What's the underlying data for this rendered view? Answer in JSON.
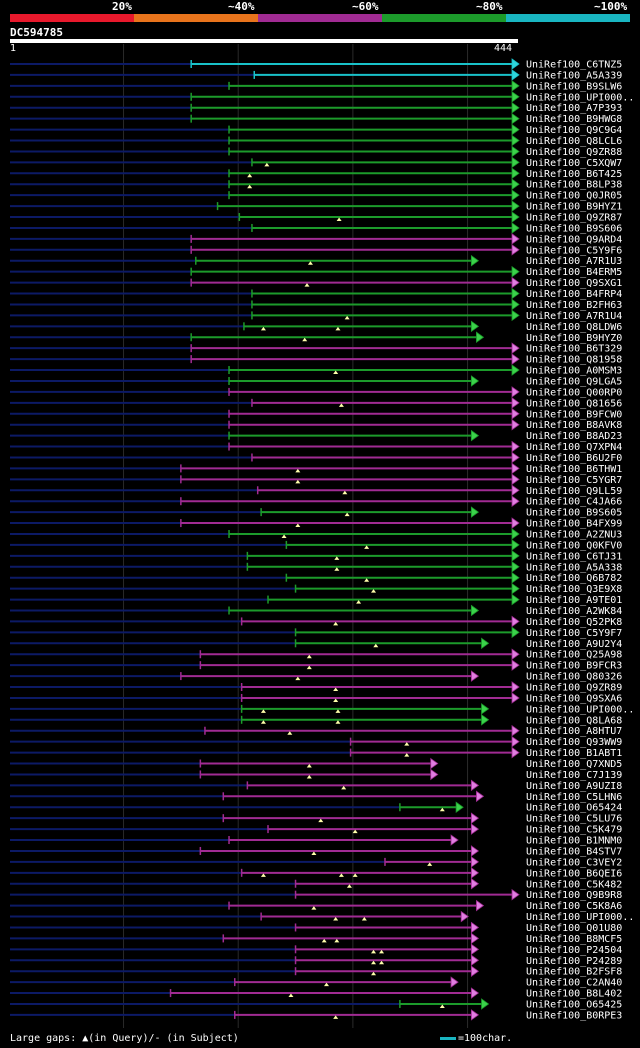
{
  "legend": {
    "labels": [
      "20%",
      "~40%",
      "~60%",
      "~80%",
      "~100%"
    ],
    "colors": [
      "#e8192c",
      "#e8741c",
      "#a12b93",
      "#1c9b2b",
      "#19b5c1"
    ]
  },
  "query": {
    "id": "DC594785",
    "start": "1",
    "end": "444",
    "length": 444
  },
  "footer": {
    "gaps_note": "Large gaps: ▲(in Query)/- (in Subject)",
    "scale_note": "=100char."
  },
  "chart_data": {
    "type": "alignment-overview",
    "title": "DC594785",
    "xlim": [
      1,
      444
    ],
    "hits": [
      {
        "label": "UniRef100_C6TNZ5",
        "start": 159,
        "color": "cyan",
        "gaps": []
      },
      {
        "label": "UniRef100_A5A339",
        "start": 214,
        "color": "cyan",
        "gaps": []
      },
      {
        "label": "UniRef100_B9SLW6",
        "start": 192,
        "color": "green",
        "gaps": []
      },
      {
        "label": "UniRef100_UPI000..",
        "start": 159,
        "color": "green",
        "gaps": []
      },
      {
        "label": "UniRef100_A7P393",
        "start": 159,
        "color": "green",
        "gaps": []
      },
      {
        "label": "UniRef100_B9HWG8",
        "start": 159,
        "color": "green",
        "gaps": []
      },
      {
        "label": "UniRef100_Q9C9G4",
        "start": 192,
        "color": "green",
        "gaps": []
      },
      {
        "label": "UniRef100_Q8LCL6",
        "start": 192,
        "color": "green",
        "gaps": []
      },
      {
        "label": "UniRef100_Q9ZR88",
        "start": 192,
        "color": "green",
        "gaps": []
      },
      {
        "label": "UniRef100_C5XQW7",
        "start": 212,
        "color": "green",
        "gaps": [
          225
        ]
      },
      {
        "label": "UniRef100_B6T425",
        "start": 192,
        "color": "green",
        "gaps": [
          210
        ]
      },
      {
        "label": "UniRef100_B8LP38",
        "start": 192,
        "color": "green",
        "gaps": [
          210
        ]
      },
      {
        "label": "UniRef100_Q0JR05",
        "start": 192,
        "color": "green",
        "gaps": []
      },
      {
        "label": "UniRef100_B9HYZ1",
        "start": 182,
        "color": "green",
        "gaps": []
      },
      {
        "label": "UniRef100_Q9ZR87",
        "start": 201,
        "color": "green",
        "gaps": [
          288
        ]
      },
      {
        "label": "UniRef100_B9S606",
        "start": 212,
        "color": "green",
        "gaps": []
      },
      {
        "label": "UniRef100_Q9ARD4",
        "start": 159,
        "color": "purple",
        "gaps": []
      },
      {
        "label": "UniRef100_C5Y9F6",
        "start": 159,
        "color": "purple",
        "gaps": []
      },
      {
        "label": "UniRef100_A7R1U3",
        "start": 163,
        "color": "green",
        "gaps": [
          263
        ],
        "end_frac": 0.92
      },
      {
        "label": "UniRef100_B4ERM5",
        "start": 159,
        "color": "green",
        "gaps": []
      },
      {
        "label": "UniRef100_Q9SXG1",
        "start": 159,
        "color": "purple",
        "gaps": [
          260
        ]
      },
      {
        "label": "UniRef100_B4FRP4",
        "start": 212,
        "color": "green",
        "gaps": []
      },
      {
        "label": "UniRef100_B2FH63",
        "start": 212,
        "color": "green",
        "gaps": []
      },
      {
        "label": "UniRef100_A7R1U4",
        "start": 212,
        "color": "green",
        "gaps": [
          295
        ]
      },
      {
        "label": "UniRef100_Q8LDW6",
        "start": 205,
        "color": "green",
        "gaps": [
          222,
          287
        ],
        "end_frac": 0.92
      },
      {
        "label": "UniRef100_B9HYZ0",
        "start": 159,
        "color": "green",
        "gaps": [
          258
        ],
        "end_frac": 0.93
      },
      {
        "label": "UniRef100_B6T329",
        "start": 159,
        "color": "purple",
        "gaps": []
      },
      {
        "label": "UniRef100_Q81958",
        "start": 159,
        "color": "purple",
        "gaps": []
      },
      {
        "label": "UniRef100_A0MSM3",
        "start": 192,
        "color": "green",
        "gaps": [
          285
        ]
      },
      {
        "label": "UniRef100_Q9LGA5",
        "start": 192,
        "color": "green",
        "gaps": [],
        "end_frac": 0.92
      },
      {
        "label": "UniRef100_Q00RP0",
        "start": 192,
        "color": "purple",
        "gaps": []
      },
      {
        "label": "UniRef100_Q81656",
        "start": 212,
        "color": "purple",
        "gaps": [
          290
        ]
      },
      {
        "label": "UniRef100_B9FCW0",
        "start": 192,
        "color": "purple",
        "gaps": []
      },
      {
        "label": "UniRef100_B8AVK8",
        "start": 192,
        "color": "purple",
        "gaps": []
      },
      {
        "label": "UniRef100_B8AD23",
        "start": 192,
        "color": "green",
        "gaps": [],
        "end_frac": 0.92
      },
      {
        "label": "UniRef100_Q7XPN4",
        "start": 192,
        "color": "purple",
        "gaps": []
      },
      {
        "label": "UniRef100_B6U2F0",
        "start": 212,
        "color": "purple",
        "gaps": []
      },
      {
        "label": "UniRef100_B6THW1",
        "start": 150,
        "color": "purple",
        "gaps": [
          252
        ]
      },
      {
        "label": "UniRef100_C5YGR7",
        "start": 150,
        "color": "purple",
        "gaps": [
          252
        ]
      },
      {
        "label": "UniRef100_Q9LL59",
        "start": 217,
        "color": "purple",
        "gaps": [
          293
        ]
      },
      {
        "label": "UniRef100_C4JA66",
        "start": 150,
        "color": "purple",
        "gaps": []
      },
      {
        "label": "UniRef100_B9S605",
        "start": 220,
        "color": "green",
        "gaps": [
          295
        ],
        "end_frac": 0.92
      },
      {
        "label": "UniRef100_B4FX99",
        "start": 150,
        "color": "purple",
        "gaps": [
          252
        ]
      },
      {
        "label": "UniRef100_A2ZNU3",
        "start": 192,
        "color": "green",
        "gaps": [
          240
        ]
      },
      {
        "label": "UniRef100_Q0KFV0",
        "start": 242,
        "color": "green",
        "gaps": [
          312
        ]
      },
      {
        "label": "UniRef100_C6TJ31",
        "start": 208,
        "color": "green",
        "gaps": [
          286
        ]
      },
      {
        "label": "UniRef100_A5A338",
        "start": 208,
        "color": "green",
        "gaps": [
          286
        ]
      },
      {
        "label": "UniRef100_Q6B782",
        "start": 242,
        "color": "green",
        "gaps": [
          312
        ]
      },
      {
        "label": "UniRef100_Q3E9X8",
        "start": 250,
        "color": "green",
        "gaps": [
          318
        ]
      },
      {
        "label": "UniRef100_A9TE01",
        "start": 226,
        "color": "green",
        "gaps": [
          305
        ]
      },
      {
        "label": "UniRef100_A2WK84",
        "start": 192,
        "color": "green",
        "gaps": [],
        "end_frac": 0.92
      },
      {
        "label": "UniRef100_Q52PK8",
        "start": 203,
        "color": "purple",
        "gaps": [
          285
        ]
      },
      {
        "label": "UniRef100_C5Y9F7",
        "start": 250,
        "color": "green",
        "gaps": []
      },
      {
        "label": "UniRef100_A9U2Y4",
        "start": 250,
        "color": "green",
        "gaps": [
          320
        ],
        "end_frac": 0.94
      },
      {
        "label": "UniRef100_Q25A98",
        "start": 167,
        "color": "purple",
        "gaps": [
          262
        ]
      },
      {
        "label": "UniRef100_B9FCR3",
        "start": 167,
        "color": "purple",
        "gaps": [
          262
        ]
      },
      {
        "label": "UniRef100_Q80326",
        "start": 150,
        "color": "purple",
        "gaps": [
          252
        ],
        "end_frac": 0.92
      },
      {
        "label": "UniRef100_Q9ZR89",
        "start": 203,
        "color": "purple",
        "gaps": [
          285
        ]
      },
      {
        "label": "UniRef100_Q9SXA6",
        "start": 203,
        "color": "purple",
        "gaps": [
          285
        ]
      },
      {
        "label": "UniRef100_UPI000..",
        "start": 203,
        "color": "green",
        "gaps": [
          222,
          287
        ],
        "end_frac": 0.94
      },
      {
        "label": "UniRef100_Q8LA68",
        "start": 203,
        "color": "green",
        "gaps": [
          222,
          287
        ],
        "end_frac": 0.94
      },
      {
        "label": "UniRef100_A8HTU7",
        "start": 171,
        "color": "purple",
        "gaps": [
          245
        ]
      },
      {
        "label": "UniRef100_Q93WW9",
        "start": 298,
        "color": "purple",
        "gaps": [
          347
        ]
      },
      {
        "label": "UniRef100_B1ABT1",
        "start": 298,
        "color": "purple",
        "gaps": [
          347
        ]
      },
      {
        "label": "UniRef100_Q7XND5",
        "start": 167,
        "color": "purple",
        "gaps": [
          262
        ],
        "end_frac": 0.84
      },
      {
        "label": "UniRef100_C7J139",
        "start": 167,
        "color": "purple",
        "gaps": [
          262
        ],
        "end_frac": 0.84
      },
      {
        "label": "UniRef100_A9UZI8",
        "start": 208,
        "color": "purple",
        "gaps": [
          292
        ],
        "end_frac": 0.92
      },
      {
        "label": "UniRef100_C5LHN6",
        "start": 187,
        "color": "purple",
        "gaps": [],
        "end_frac": 0.93
      },
      {
        "label": "UniRef100_O65424",
        "start": 341,
        "color": "green",
        "gaps": [
          378
        ],
        "end_frac": 0.89
      },
      {
        "label": "UniRef100_C5LU76",
        "start": 187,
        "color": "purple",
        "gaps": [
          272
        ],
        "end_frac": 0.92
      },
      {
        "label": "UniRef100_C5K479",
        "start": 226,
        "color": "purple",
        "gaps": [
          302
        ],
        "end_frac": 0.92
      },
      {
        "label": "UniRef100_B1MNM0",
        "start": 192,
        "color": "purple",
        "gaps": [],
        "end_frac": 0.88
      },
      {
        "label": "UniRef100_B4STV7",
        "start": 167,
        "color": "purple",
        "gaps": [
          266
        ],
        "end_frac": 0.92
      },
      {
        "label": "UniRef100_C3VEY2",
        "start": 328,
        "color": "purple",
        "gaps": [
          367
        ],
        "end_frac": 0.92
      },
      {
        "label": "UniRef100_B6QEI6",
        "start": 203,
        "color": "purple",
        "gaps": [
          222,
          290,
          302
        ],
        "end_frac": 0.92
      },
      {
        "label": "UniRef100_C5K482",
        "start": 250,
        "color": "purple",
        "gaps": [
          297
        ],
        "end_frac": 0.92
      },
      {
        "label": "UniRef100_Q9B9R8",
        "start": 250,
        "color": "purple",
        "gaps": []
      },
      {
        "label": "UniRef100_C5K8A6",
        "start": 192,
        "color": "purple",
        "gaps": [
          266
        ],
        "end_frac": 0.93
      },
      {
        "label": "UniRef100_UPI000..",
        "start": 220,
        "color": "purple",
        "gaps": [
          285,
          310
        ],
        "end_frac": 0.9
      },
      {
        "label": "UniRef100_Q01U80",
        "start": 250,
        "color": "purple",
        "gaps": [],
        "end_frac": 0.92
      },
      {
        "label": "UniRef100_B8MCF5",
        "start": 187,
        "color": "purple",
        "gaps": [
          275,
          286
        ],
        "end_frac": 0.92
      },
      {
        "label": "UniRef100_P24504",
        "start": 250,
        "color": "purple",
        "gaps": [
          318,
          325
        ],
        "end_frac": 0.92
      },
      {
        "label": "UniRef100_P24289",
        "start": 250,
        "color": "purple",
        "gaps": [
          318,
          325
        ],
        "end_frac": 0.92
      },
      {
        "label": "UniRef100_B2FSF8",
        "start": 250,
        "color": "purple",
        "gaps": [
          318
        ],
        "end_frac": 0.92
      },
      {
        "label": "UniRef100_C2AN40",
        "start": 197,
        "color": "purple",
        "gaps": [
          277
        ],
        "end_frac": 0.88
      },
      {
        "label": "UniRef100_B8L402",
        "start": 141,
        "color": "purple",
        "gaps": [
          246
        ],
        "end_frac": 0.92
      },
      {
        "label": "UniRef100_O65425",
        "start": 341,
        "color": "green",
        "gaps": [
          378
        ],
        "end_frac": 0.94
      },
      {
        "label": "UniRef100_B0RPE3",
        "start": 197,
        "color": "purple",
        "gaps": [
          285
        ],
        "end_frac": 0.92
      }
    ]
  }
}
